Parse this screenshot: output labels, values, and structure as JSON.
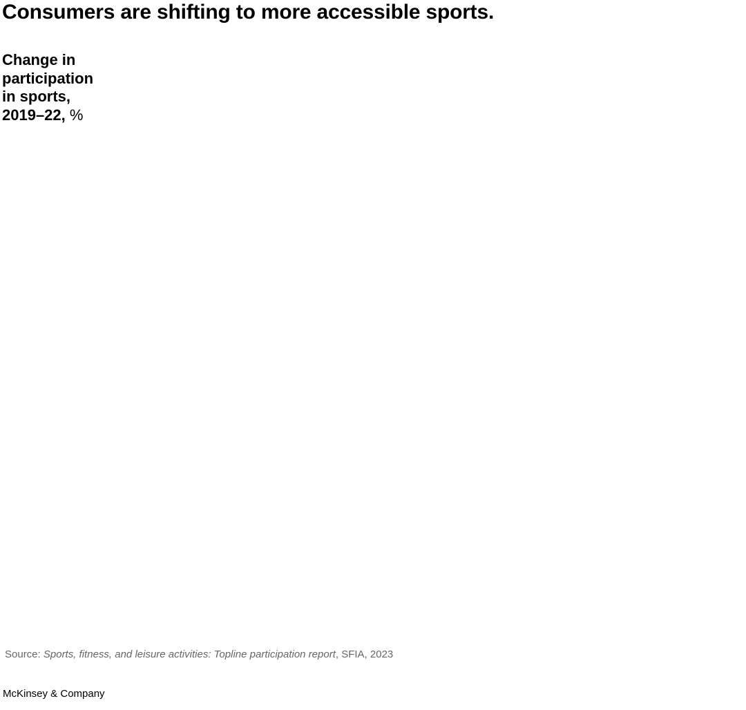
{
  "header": {
    "title": "Consumers are shifting to more accessible sports."
  },
  "chart_data": {
    "type": "bar",
    "subtitle": "Change in participation in sports, 2019–22,",
    "unit": "%",
    "categories": [],
    "values": []
  },
  "footer": {
    "source_prefix": "Source: ",
    "source_title": "Sports, fitness, and leisure activities: Topline participation report",
    "source_suffix": ", SFIA, 2023",
    "brand": "McKinsey & Company"
  }
}
